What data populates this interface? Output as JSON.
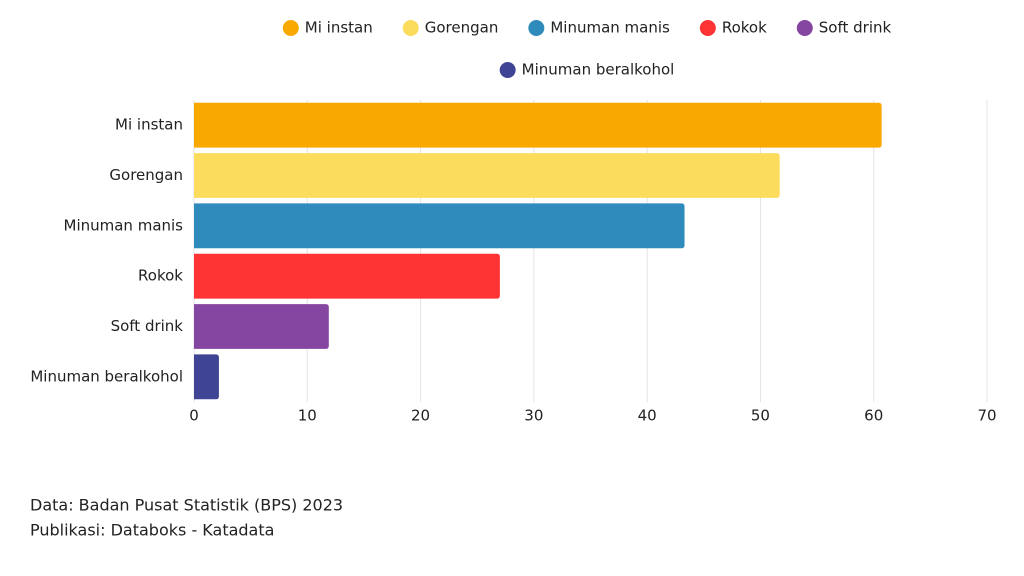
{
  "chart_data": {
    "type": "hbar",
    "categories": [
      "Mi instan",
      "Gorengan",
      "Minuman manis",
      "Rokok",
      "Soft drink",
      "Minuman beralkohol"
    ],
    "values": [
      60.7,
      51.7,
      43.3,
      27.0,
      11.9,
      2.2
    ],
    "colors": [
      "#f9a800",
      "#fcdc5c",
      "#2e8bbb",
      "#fe3333",
      "#8446a0",
      "#3f4594"
    ],
    "xlim": [
      0,
      70
    ],
    "xticks": [
      0,
      10,
      20,
      30,
      40,
      50,
      60,
      70
    ],
    "grid": true,
    "legend": "top"
  },
  "footer": [
    "Data: Badan Pusat Statistik (BPS) 2023",
    "Publikasi: Databoks - Katadata"
  ]
}
